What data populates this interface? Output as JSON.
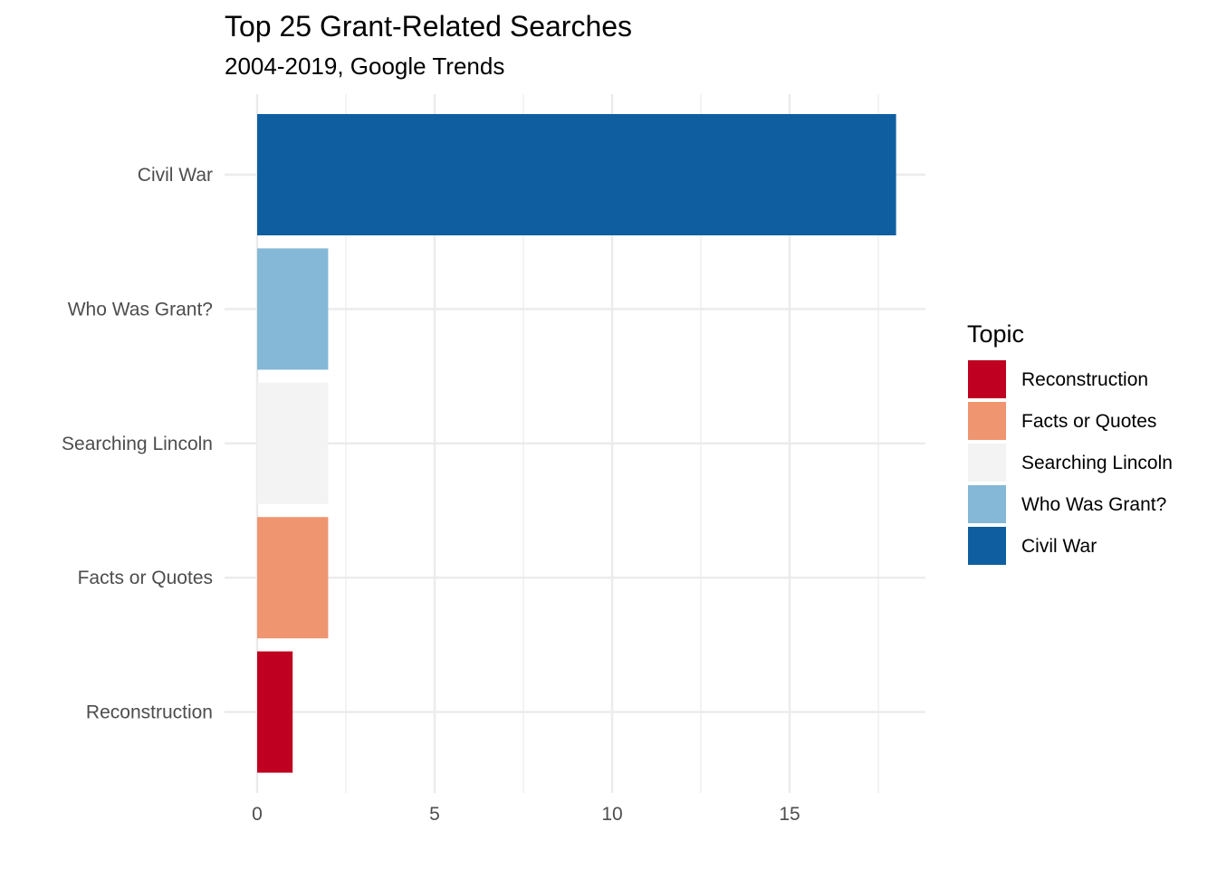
{
  "chart_data": {
    "type": "bar",
    "orientation": "horizontal",
    "title": "Top 25 Grant-Related Searches",
    "subtitle": "2004-2019, Google Trends",
    "xlabel": "",
    "ylabel": "",
    "categories": [
      "Civil War",
      "Who Was Grant?",
      "Searching Lincoln",
      "Facts or Quotes",
      "Reconstruction"
    ],
    "values": [
      18,
      2,
      2,
      2,
      1
    ],
    "colors": [
      "#0f5fa0",
      "#84b8d6",
      "#f3f3f3",
      "#ef9570",
      "#bf0020"
    ],
    "xlim": [
      0,
      18.9
    ],
    "x_ticks": [
      "0",
      "5",
      "10",
      "15"
    ],
    "x_tick_values": [
      0,
      5,
      10,
      15
    ],
    "grid": true,
    "legend": {
      "title": "Topic",
      "placement": "right",
      "items": [
        {
          "label": "Reconstruction",
          "color": "#bf0020"
        },
        {
          "label": "Facts or Quotes",
          "color": "#ef9570"
        },
        {
          "label": "Searching Lincoln",
          "color": "#f3f3f3"
        },
        {
          "label": "Who Was Grant?",
          "color": "#84b8d6"
        },
        {
          "label": "Civil War",
          "color": "#0f5fa0"
        }
      ]
    }
  }
}
